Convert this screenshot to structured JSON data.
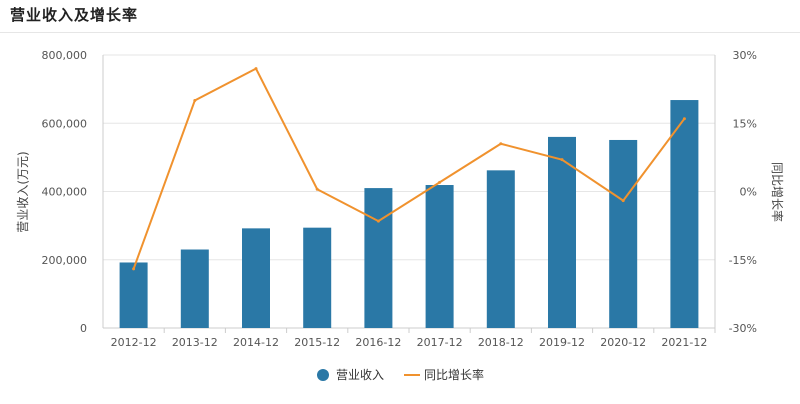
{
  "chart_data": {
    "type": "bar",
    "title": "营业收入及增长率",
    "categories": [
      "2012-12",
      "2013-12",
      "2014-12",
      "2015-12",
      "2016-12",
      "2017-12",
      "2018-12",
      "2019-12",
      "2020-12",
      "2021-12"
    ],
    "series": [
      {
        "name": "营业收入",
        "type": "bar",
        "axis": "left",
        "values": [
          192000,
          230000,
          292000,
          294000,
          410000,
          419000,
          462000,
          560000,
          551000,
          668000
        ]
      },
      {
        "name": "同比增长率",
        "type": "line",
        "axis": "right",
        "values": [
          -17.0,
          20.0,
          27.0,
          0.5,
          -6.5,
          2.0,
          10.5,
          7.0,
          -2.0,
          16.0
        ]
      }
    ],
    "ylabel": "营业收入(万元)",
    "y2label": "同比增长率",
    "ylim": [
      0,
      800000
    ],
    "yticks": [
      "0",
      "200,000",
      "400,000",
      "600,000",
      "800,000"
    ],
    "y2lim": [
      -30,
      30
    ],
    "y2ticks": [
      "-30%",
      "-15%",
      "0%",
      "15%",
      "30%"
    ],
    "grid": true,
    "legend": "bottom-center",
    "colors": {
      "bar": "#2a78a6",
      "line": "#f0922e",
      "grid": "#e6e6e6",
      "axis": "#cccccc"
    }
  }
}
